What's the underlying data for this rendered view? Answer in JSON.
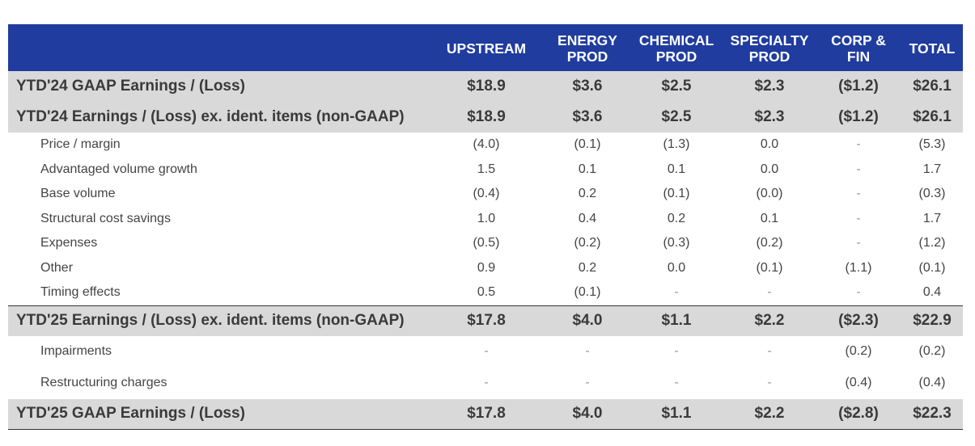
{
  "header": {
    "columns": [
      {
        "lines": [
          "UPSTREAM"
        ]
      },
      {
        "lines": [
          "ENERGY",
          "PROD"
        ]
      },
      {
        "lines": [
          "CHEMICAL",
          "PROD"
        ]
      },
      {
        "lines": [
          "SPECIALTY",
          "PROD"
        ]
      },
      {
        "lines": [
          "CORP &",
          "FIN"
        ]
      },
      {
        "lines": [
          "TOTAL"
        ]
      }
    ]
  },
  "rows": [
    {
      "kind": "major",
      "label": "YTD'24 GAAP Earnings / (Loss)",
      "values": [
        "$18.9",
        "$3.6",
        "$2.5",
        "$2.3",
        "($1.2)",
        "$26.1"
      ]
    },
    {
      "kind": "major",
      "label": "YTD'24 Earnings / (Loss) ex. ident. items (non-GAAP)",
      "values": [
        "$18.9",
        "$3.6",
        "$2.5",
        "$2.3",
        "($1.2)",
        "$26.1"
      ]
    },
    {
      "kind": "sub",
      "label": "Price / margin",
      "values": [
        "(4.0)",
        "(0.1)",
        "(1.3)",
        "0.0",
        "-",
        "(5.3)"
      ]
    },
    {
      "kind": "sub",
      "label": "Advantaged volume growth",
      "values": [
        "1.5",
        "0.1",
        "0.1",
        "0.0",
        "-",
        "1.7"
      ]
    },
    {
      "kind": "sub",
      "label": "Base volume",
      "values": [
        "(0.4)",
        "0.2",
        "(0.1)",
        "(0.0)",
        "-",
        "(0.3)"
      ]
    },
    {
      "kind": "sub",
      "label": "Structural cost savings",
      "values": [
        "1.0",
        "0.4",
        "0.2",
        "0.1",
        "-",
        "1.7"
      ]
    },
    {
      "kind": "sub",
      "label": "Expenses",
      "values": [
        "(0.5)",
        "(0.2)",
        "(0.3)",
        "(0.2)",
        "-",
        "(1.2)"
      ]
    },
    {
      "kind": "sub",
      "label": "Other",
      "values": [
        "0.9",
        "0.2",
        "0.0",
        "(0.1)",
        "(1.1)",
        "(0.1)"
      ]
    },
    {
      "kind": "sub",
      "label": "Timing effects",
      "values": [
        "0.5",
        "(0.1)",
        "-",
        "-",
        "-",
        "0.4"
      ]
    },
    {
      "kind": "major",
      "label": "YTD'25 Earnings / (Loss) ex. ident. items (non-GAAP)",
      "values": [
        "$17.8",
        "$4.0",
        "$1.1",
        "$2.2",
        "($2.3)",
        "$22.9"
      ]
    },
    {
      "kind": "sub2",
      "label": "Impairments",
      "values": [
        "-",
        "-",
        "-",
        "-",
        "(0.2)",
        "(0.2)"
      ]
    },
    {
      "kind": "sub2",
      "label": "Restructuring charges",
      "values": [
        "-",
        "-",
        "-",
        "-",
        "(0.4)",
        "(0.4)"
      ]
    },
    {
      "kind": "major",
      "label": "YTD'25 GAAP Earnings / (Loss)",
      "values": [
        "$17.8",
        "$4.0",
        "$1.1",
        "$2.2",
        "($2.8)",
        "$22.3"
      ]
    }
  ],
  "colors": {
    "header_bg": "#1f3c9e",
    "major_bg": "#d9d9d9"
  }
}
